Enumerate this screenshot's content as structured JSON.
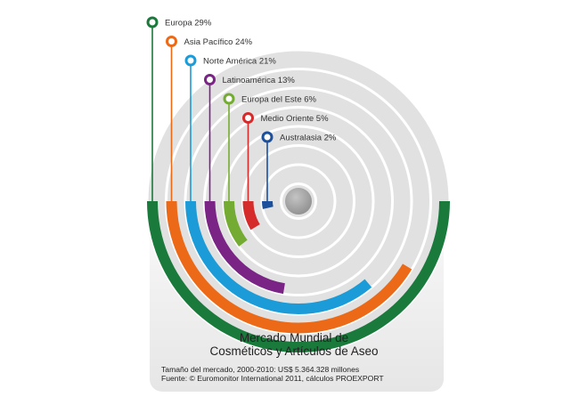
{
  "chart_data": {
    "type": "radial-bar",
    "title_line1": "Mercado Mundial de",
    "title_line2": "Cosméticos y Artículos de Aseo",
    "note": "Tamaño del mercado, 2000-2010: US$ 5.364.328 millones",
    "source": "Fuente: © Euromonitor International 2011, cálculos PROEXPORT",
    "series": [
      {
        "name": "Europa",
        "value": 29,
        "label": "Europa 29%",
        "color": "#1a7a3c"
      },
      {
        "name": "Asia Pacífico",
        "value": 24,
        "label": "Asia Pacífico 24%",
        "color": "#ec6a17"
      },
      {
        "name": "Norte América",
        "value": 21,
        "label": "Norte América 21%",
        "color": "#1b9bd7"
      },
      {
        "name": "Latinoamérica",
        "value": 13,
        "label": "Latinoamérica 13%",
        "color": "#7a2486"
      },
      {
        "name": "Europa del Este",
        "value": 6,
        "label": "Europa del Este 6%",
        "color": "#74ab32"
      },
      {
        "name": "Medio Oriente",
        "value": 5,
        "label": "Medio Oriente 5%",
        "color": "#d62b2b"
      },
      {
        "name": "Australasia",
        "value": 2,
        "label": "Australasia 2%",
        "color": "#1c4f9c"
      }
    ]
  }
}
